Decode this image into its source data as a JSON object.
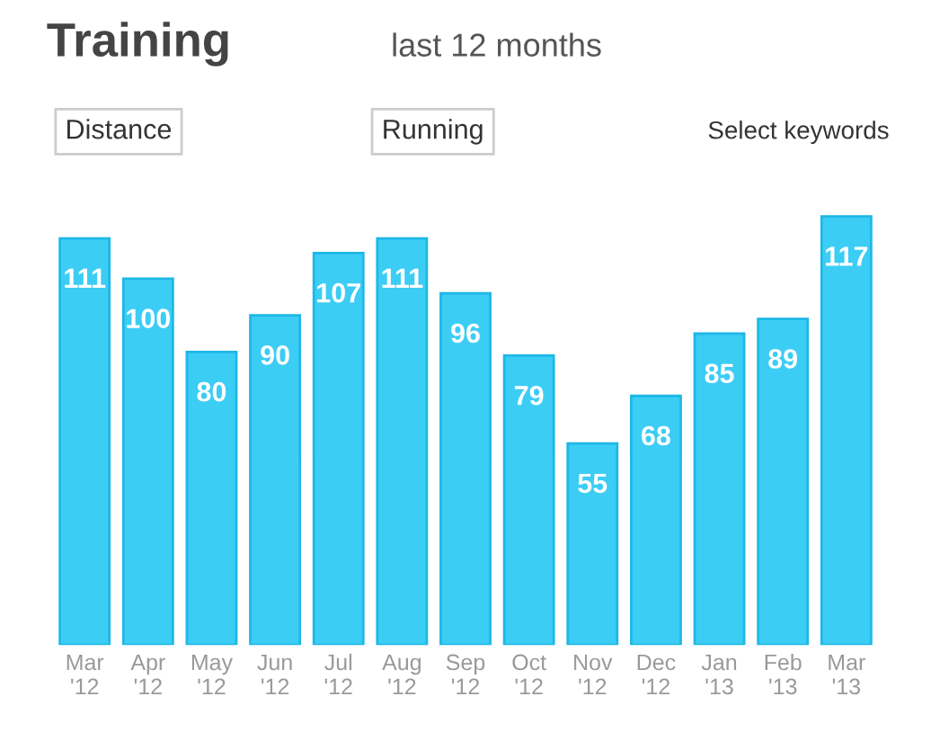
{
  "chart_data": {
    "type": "bar",
    "title": "Training",
    "subtitle": "last 12 months",
    "annotations": [
      "Distance",
      "Running",
      "Select keywords"
    ],
    "categories": [
      "Mar\n'12",
      "Apr\n'12",
      "May\n'12",
      "Jun\n'12",
      "Jul\n'12",
      "Aug\n'12",
      "Sep\n'12",
      "Oct\n'12",
      "Nov\n'12",
      "Dec\n'12",
      "Jan\n'13",
      "Feb\n'13",
      "Mar\n'13"
    ],
    "values": [
      111,
      100,
      80,
      90,
      107,
      111,
      96,
      79,
      55,
      68,
      85,
      89,
      117
    ],
    "color": "#3ccdf5",
    "data_labels": true,
    "grid": false,
    "legend": false
  }
}
